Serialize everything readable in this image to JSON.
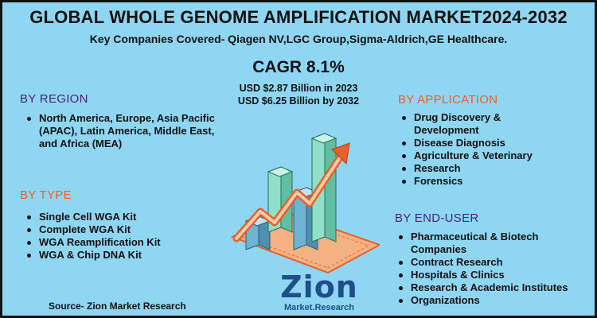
{
  "header": {
    "title": "GLOBAL WHOLE GENOME AMPLIFICATION MARKET2024-2032",
    "subtitle": "Key Companies Covered- Qiagen NV,LGC Group,Sigma-Aldrich,GE Healthcare."
  },
  "stats": {
    "cagr": "CAGR 8.1%",
    "usd_2023": "USD $2.87 Billion  in 2023",
    "usd_2032": "USD $6.25 Billion  by 2032"
  },
  "region": {
    "heading": "BY REGION",
    "items": [
      "North America, Europe, Asia Pacific (APAC), Latin America, Middle East, and Africa (MEA)"
    ]
  },
  "type": {
    "heading": "BY TYPE",
    "items": [
      "Single Cell WGA Kit",
      "Complete WGA Kit",
      "WGA Reamplification Kit",
      "WGA & Chip DNA Kit"
    ]
  },
  "application": {
    "heading": "BY APPLICATION",
    "items": [
      "Drug Discovery & Development",
      "Disease Diagnosis",
      "Agriculture & Veterinary",
      "Research",
      "Forensics"
    ]
  },
  "end_user": {
    "heading": "BY END-USER",
    "items": [
      "Pharmaceutical & Biotech Companies",
      "Contract Research",
      "Hospitals & Clinics",
      "Research & Academic Institutes",
      "Organizations"
    ]
  },
  "logo": {
    "main": "Zion",
    "sub": "Market.Research"
  },
  "footer": {
    "source": "Source- Zion Market Research"
  },
  "colors": {
    "background": "#8fd6f2",
    "heading_purple": "#4e1f7a",
    "heading_orange": "#e8602c",
    "logo_blue": "#1f4e8a"
  }
}
